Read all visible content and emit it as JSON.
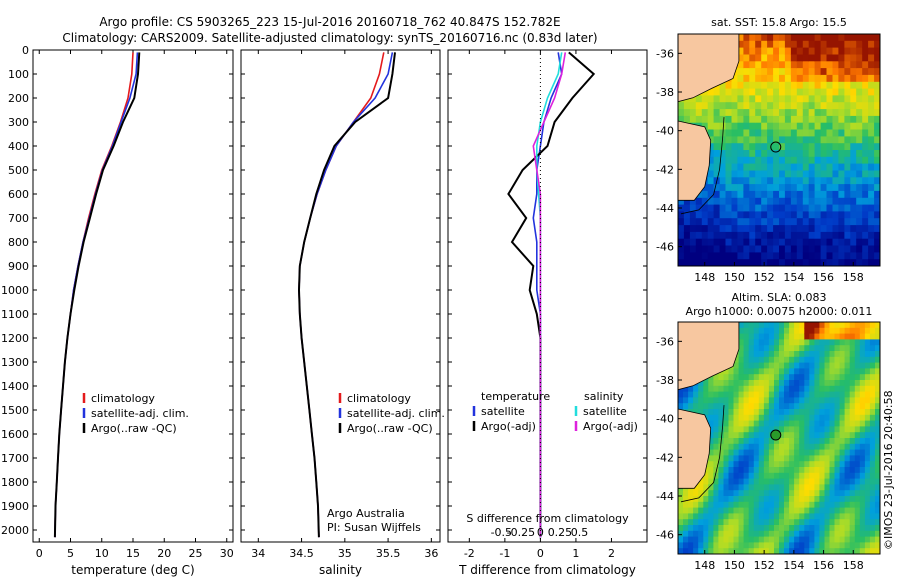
{
  "title_line1": "Argo profile: CS 5903265_223 15-Jul-2016 20160718_762 40.847S 152.782E",
  "title_line2": "Climatology: CARS2009. Satellite-adjusted climatology: synTS_20160716.nc (0.83d later)",
  "credit": "Argo Australia",
  "pi": "PI: Susan Wijffels",
  "footer_stamp": "©IMOS 23-Jul-2016 20:40:58",
  "colors": {
    "clim": "#e41a1c",
    "sat": "#2233dd",
    "argo": "#000000",
    "sal_sat": "#22dddd",
    "sal_argo": "#dd22dd",
    "land": "#f7c7a0"
  },
  "chart_data": [
    {
      "type": "line",
      "panel": "temperature",
      "xlabel": "temperature (deg C)",
      "ylabel": "",
      "xlim": [
        -1,
        31
      ],
      "ylim": [
        2050,
        0
      ],
      "ydir": "reverse",
      "xticks": [
        0,
        5,
        10,
        15,
        20,
        25,
        30
      ],
      "yticks": [
        0,
        100,
        200,
        300,
        400,
        500,
        600,
        700,
        800,
        900,
        1000,
        1100,
        1200,
        1300,
        1400,
        1500,
        1600,
        1700,
        1800,
        1900,
        2000
      ],
      "legend": [
        "climatology",
        "satellite-adj. clim.",
        "Argo(..raw -QC)"
      ],
      "series": [
        {
          "name": "climatology",
          "color": "#e41a1c",
          "x": [
            15.0,
            14.8,
            14.2,
            13.0,
            11.6,
            10.0,
            8.9,
            7.9,
            7.0,
            6.2,
            5.5,
            5.0,
            4.5,
            4.1,
            3.8,
            3.5,
            3.2,
            3.0,
            2.8,
            2.6,
            2.5
          ],
          "y": [
            10,
            100,
            200,
            300,
            400,
            500,
            600,
            700,
            800,
            900,
            1000,
            1100,
            1200,
            1300,
            1400,
            1500,
            1600,
            1700,
            1800,
            1900,
            2030
          ]
        },
        {
          "name": "satellite-adj. clim.",
          "color": "#2233dd",
          "x": [
            15.7,
            15.5,
            14.5,
            13.1,
            11.7,
            10.1,
            9.0,
            8.0,
            7.0,
            6.2,
            5.5,
            5.0,
            4.5,
            4.1,
            3.8,
            3.5,
            3.2,
            3.0,
            2.8,
            2.6,
            2.5
          ],
          "y": [
            10,
            100,
            200,
            300,
            400,
            500,
            600,
            700,
            800,
            900,
            1000,
            1100,
            1200,
            1300,
            1400,
            1500,
            1600,
            1700,
            1800,
            1900,
            2030
          ]
        },
        {
          "name": "Argo(..raw -QC)",
          "color": "#000000",
          "x": [
            16.0,
            15.8,
            15.2,
            13.4,
            11.9,
            10.2,
            9.1,
            8.1,
            7.1,
            6.3,
            5.6,
            5.0,
            4.5,
            4.1,
            3.8,
            3.5,
            3.2,
            3.0,
            2.8,
            2.6,
            2.5
          ],
          "y": [
            10,
            100,
            200,
            300,
            400,
            500,
            600,
            700,
            800,
            900,
            1000,
            1100,
            1200,
            1300,
            1400,
            1500,
            1600,
            1700,
            1800,
            1900,
            2030
          ]
        }
      ]
    },
    {
      "type": "line",
      "panel": "salinity",
      "xlabel": "salinity",
      "xlim": [
        33.8,
        36.1
      ],
      "ylim": [
        2050,
        0
      ],
      "xticks": [
        34,
        34.5,
        35,
        35.5,
        36
      ],
      "legend": [
        "climatology",
        "satellite-adj. clim.",
        "Argo(..raw -QC)"
      ],
      "series": [
        {
          "name": "climatology",
          "color": "#e41a1c",
          "x": [
            35.45,
            35.4,
            35.3,
            35.1,
            34.9,
            34.78,
            34.68,
            34.6,
            34.53,
            34.48,
            34.47,
            34.48,
            34.5,
            34.53,
            34.56,
            34.59,
            34.62,
            34.65,
            34.67,
            34.69,
            34.7
          ],
          "y": [
            10,
            100,
            200,
            300,
            400,
            500,
            600,
            700,
            800,
            900,
            1000,
            1100,
            1200,
            1300,
            1400,
            1500,
            1600,
            1700,
            1800,
            1900,
            2030
          ]
        },
        {
          "name": "satellite-adj. clim.",
          "color": "#2233dd",
          "x": [
            35.55,
            35.5,
            35.35,
            35.1,
            34.9,
            34.78,
            34.68,
            34.6,
            34.53,
            34.48,
            34.47,
            34.48,
            34.5,
            34.53,
            34.56,
            34.59,
            34.62,
            34.65,
            34.67,
            34.69,
            34.7
          ],
          "y": [
            10,
            100,
            200,
            300,
            400,
            500,
            600,
            700,
            800,
            900,
            1000,
            1100,
            1200,
            1300,
            1400,
            1500,
            1600,
            1700,
            1800,
            1900,
            2030
          ]
        },
        {
          "name": "Argo(..raw -QC)",
          "color": "#000000",
          "x": [
            35.58,
            35.55,
            35.5,
            35.12,
            34.88,
            34.76,
            34.67,
            34.6,
            34.53,
            34.48,
            34.47,
            34.48,
            34.5,
            34.53,
            34.56,
            34.59,
            34.62,
            34.65,
            34.67,
            34.69,
            34.7
          ],
          "y": [
            10,
            100,
            200,
            300,
            400,
            500,
            600,
            700,
            800,
            900,
            1000,
            1100,
            1200,
            1300,
            1400,
            1500,
            1600,
            1700,
            1800,
            1900,
            2030
          ]
        }
      ]
    },
    {
      "type": "line",
      "panel": "difference",
      "xlabel": "T difference from climatology",
      "xlabel2": "S difference from climatology",
      "xlim": [
        -2.6,
        3.0
      ],
      "ylim": [
        2050,
        0
      ],
      "xticks": [
        -2,
        -1,
        0,
        1,
        2
      ],
      "xticks2": [
        -0.5,
        -0.25,
        0,
        0.25,
        0.5
      ],
      "xticklabels2": [
        "-0.5",
        "-0.25",
        "0",
        "0.25",
        "0.5"
      ],
      "legend_left_title": "temperature",
      "legend_right_title": "salinity",
      "legend": [
        "satellite",
        "Argo(-adj)",
        "satellite",
        "Argo(-adj)"
      ],
      "series": [
        {
          "name": "T satellite",
          "color": "#2233dd",
          "x": [
            0.5,
            0.6,
            0.3,
            0.1,
            0.0,
            -0.1,
            -0.1,
            -0.2,
            -0.1,
            -0.1,
            -0.1,
            0.0,
            0.0,
            0.0,
            0.0,
            0.0,
            0.0,
            0.0,
            0.0,
            0.0,
            0.0
          ],
          "y": [
            10,
            100,
            200,
            300,
            400,
            500,
            600,
            700,
            800,
            900,
            1000,
            1100,
            1200,
            1300,
            1400,
            1500,
            1600,
            1700,
            1800,
            1900,
            2030
          ]
        },
        {
          "name": "T Argo(-adj)",
          "color": "#000000",
          "x": [
            0.8,
            1.5,
            0.9,
            0.4,
            0.2,
            -0.5,
            -0.9,
            -0.4,
            -0.8,
            -0.2,
            -0.3,
            -0.1,
            0.0,
            0.0,
            0.0,
            0.0,
            0.0,
            0.0,
            0.0,
            0.0,
            0.0
          ],
          "y": [
            10,
            100,
            200,
            300,
            400,
            500,
            600,
            700,
            800,
            900,
            1000,
            1100,
            1200,
            1300,
            1400,
            1500,
            1600,
            1700,
            1800,
            1900,
            2030
          ]
        },
        {
          "name": "S satellite",
          "color": "#22dddd",
          "x": [
            0.6,
            0.5,
            0.2,
            0.0,
            -0.1,
            -0.1,
            -0.05,
            0.0,
            0.0,
            0.0,
            0.0,
            0.0,
            0.0,
            0.0,
            0.0,
            0.0,
            0.0,
            0.0,
            0.0,
            0.0,
            0.0
          ],
          "y": [
            10,
            100,
            200,
            300,
            400,
            500,
            600,
            700,
            800,
            900,
            1000,
            1100,
            1200,
            1300,
            1400,
            1500,
            1600,
            1700,
            1800,
            1900,
            2030
          ]
        },
        {
          "name": "S Argo(-adj)",
          "color": "#dd22dd",
          "x": [
            0.7,
            0.6,
            0.4,
            0.1,
            -0.2,
            -0.1,
            0.0,
            0.0,
            0.0,
            0.0,
            0.0,
            0.0,
            0.0,
            0.0,
            0.0,
            0.0,
            0.0,
            0.0,
            0.0,
            0.0,
            0.0
          ],
          "y": [
            10,
            100,
            200,
            300,
            400,
            500,
            600,
            700,
            800,
            900,
            1000,
            1100,
            1200,
            1300,
            1400,
            1500,
            1600,
            1700,
            1800,
            1900,
            2030
          ]
        }
      ]
    },
    {
      "type": "heatmap",
      "panel": "sst_map",
      "title": "sat. SST: 15.8 Argo: 15.5",
      "xticks": [
        148,
        150,
        152,
        154,
        156,
        158
      ],
      "yticks": [
        -36,
        -38,
        -40,
        -42,
        -44,
        -46
      ],
      "xlim": [
        146.2,
        159.8
      ],
      "ylim": [
        -47,
        -35
      ],
      "marker": {
        "lon": 152.782,
        "lat": -40.847
      }
    },
    {
      "type": "heatmap",
      "panel": "sla_map",
      "title_line1": "Altim. SLA: 0.083",
      "title_line2": "Argo h1000: 0.0075 h2000: 0.011",
      "xticks": [
        148,
        150,
        152,
        154,
        156,
        158
      ],
      "yticks": [
        -36,
        -38,
        -40,
        -42,
        -44,
        -46
      ],
      "xlim": [
        146.2,
        159.8
      ],
      "ylim": [
        -47,
        -35
      ],
      "marker": {
        "lon": 152.782,
        "lat": -40.847
      }
    }
  ]
}
